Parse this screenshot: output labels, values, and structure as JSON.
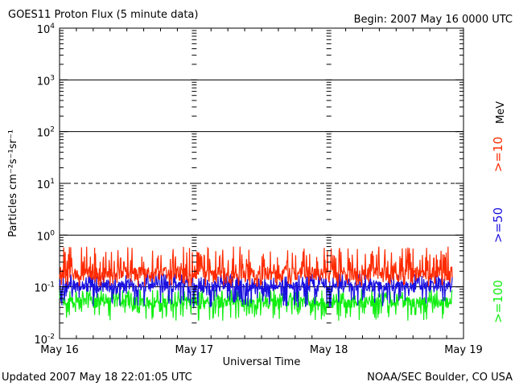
{
  "header": {
    "title": "GOES11 Proton Flux (5 minute data)",
    "begin": "Begin: 2007 May 16 0000 UTC"
  },
  "footer": {
    "updated": "Updated 2007 May 18 22:01:05 UTC",
    "credit": "NOAA/SEC Boulder, CO USA"
  },
  "chart_data": {
    "type": "line",
    "title": "GOES11 Proton Flux (5 minute data)",
    "xlabel": "Universal Time",
    "ylabel": "Particles cm⁻²s⁻¹sr⁻¹",
    "yscale": "log",
    "ylim": [
      0.01,
      10000
    ],
    "xlim": [
      "2007-05-16 00:00",
      "2007-05-19 00:00"
    ],
    "x_tick_labels": [
      "May 16",
      "May 17",
      "May 18",
      "May 19"
    ],
    "y_tick_labels": [
      {
        "base": "10",
        "exp": "-2"
      },
      {
        "base": "10",
        "exp": "-1"
      },
      {
        "base": "10",
        "exp": "0"
      },
      {
        "base": "10",
        "exp": "1"
      },
      {
        "base": "10",
        "exp": "2"
      },
      {
        "base": "10",
        "exp": "3"
      },
      {
        "base": "10",
        "exp": "4"
      }
    ],
    "grid": "horizontal lines at each decade (dashed at 10^1)",
    "unit_label": "MeV",
    "series": [
      {
        "name": ">=10",
        "color": "#ff2a00",
        "x_end": "2007-05-18 22:00",
        "typical": 0.18,
        "range": [
          0.1,
          0.6
        ]
      },
      {
        "name": ">=50",
        "color": "#1a10e0",
        "x_end": "2007-05-18 22:00",
        "typical": 0.1,
        "range": [
          0.04,
          0.18
        ]
      },
      {
        "name": ">=100",
        "color": "#10ee10",
        "x_end": "2007-05-18 22:00",
        "typical": 0.05,
        "range": [
          0.022,
          0.09
        ]
      }
    ]
  }
}
